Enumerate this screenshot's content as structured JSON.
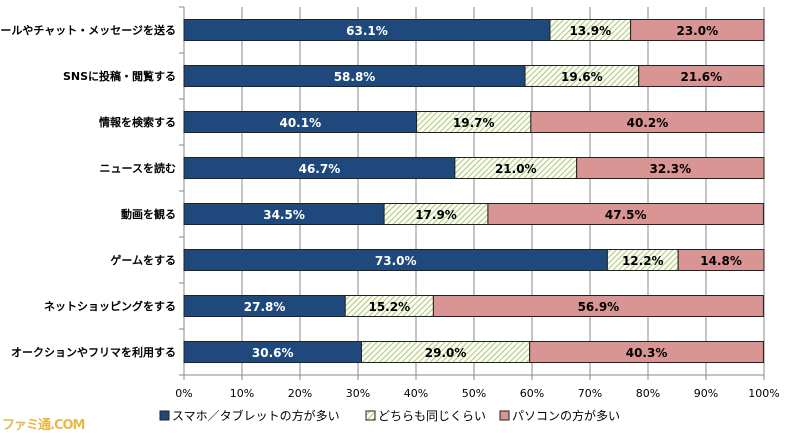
{
  "chart_data": {
    "type": "bar",
    "orientation": "horizontal",
    "stacked": true,
    "categories": [
      "メールやチャット・メッセージを送る",
      "SNSに投稿・閲覧する",
      "情報を検索する",
      "ニュースを読む",
      "動画を観る",
      "ゲームをする",
      "ネットショッピングをする",
      "オークションやフリマを利用する"
    ],
    "series": [
      {
        "name": "スマホ／タブレットの方が多い",
        "color": "#1f497d",
        "values": [
          63.1,
          58.8,
          40.1,
          46.7,
          34.5,
          73.0,
          27.8,
          30.6
        ],
        "labels": [
          "63.1%",
          "58.8%",
          "40.1%",
          "46.7%",
          "34.5%",
          "73.0%",
          "27.8%",
          "30.6%"
        ]
      },
      {
        "name": "どちらも同じくらい",
        "color": "#ebf1de",
        "values": [
          13.9,
          19.6,
          19.7,
          21.0,
          17.9,
          12.2,
          15.2,
          29.0
        ],
        "labels": [
          "13.9%",
          "19.6%",
          "19.7%",
          "21.0%",
          "17.9%",
          "12.2%",
          "15.2%",
          "29.0%"
        ]
      },
      {
        "name": "パソコンの方が多い",
        "color": "#d99594",
        "values": [
          23.0,
          21.6,
          40.2,
          32.3,
          47.5,
          14.8,
          56.9,
          40.3
        ],
        "labels": [
          "23.0%",
          "21.6%",
          "40.2%",
          "32.3%",
          "47.5%",
          "14.8%",
          "56.9%",
          "40.3%"
        ]
      }
    ],
    "xlim": [
      0,
      100
    ],
    "xticks": [
      "0%",
      "10%",
      "20%",
      "30%",
      "40%",
      "50%",
      "60%",
      "70%",
      "80%",
      "90%",
      "100%"
    ],
    "grid": true,
    "legend": "bottom"
  },
  "watermark": "ファミ通.COM"
}
